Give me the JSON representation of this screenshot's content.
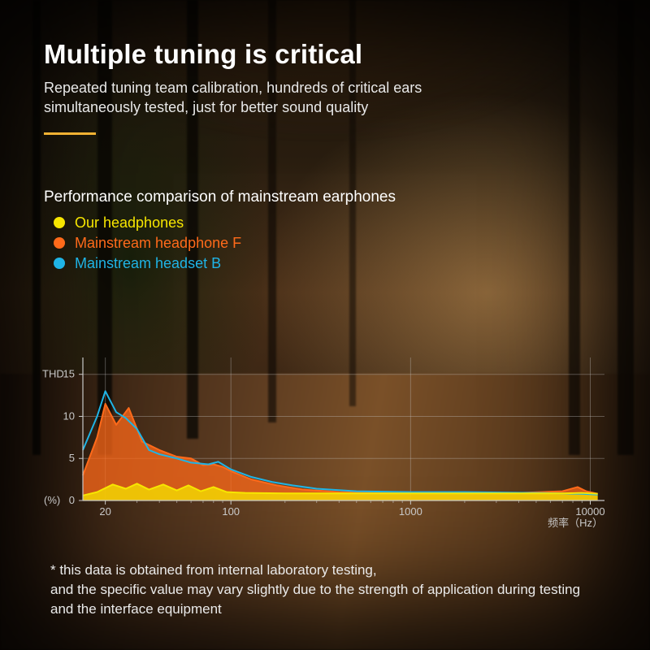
{
  "header": {
    "title": "Multiple tuning is critical",
    "subtitle": "Repeated tuning team calibration, hundreds of critical ears simultaneously tested, just for better sound quality",
    "rule_color": "#f2b233"
  },
  "legend": {
    "section_title": "Performance comparison of mainstream earphones",
    "items": [
      {
        "label": "Our headphones",
        "color": "#f7e600"
      },
      {
        "label": "Mainstream headphone F",
        "color": "#ff6a1a"
      },
      {
        "label": "Mainstream headset B",
        "color": "#1fb4e6"
      }
    ]
  },
  "chart": {
    "type": "line-area",
    "y_axis_title": "THD",
    "y_unit_label": "(%)",
    "x_unit_label": "频率（Hz）",
    "xscale": "log",
    "xlim": [
      15,
      12000
    ],
    "ylim": [
      0,
      17
    ],
    "y_ticks": [
      0,
      5,
      10,
      15
    ],
    "x_ticks": [
      20,
      100,
      1000,
      10000
    ],
    "axis_color": "#c8c8c8",
    "grid_color": "rgba(200,200,200,0.35)",
    "tick_fontsize": 13,
    "label_fontsize": 13,
    "line_width": 2,
    "area_opacity": 0.75,
    "background": "transparent",
    "x_minor_ticks": [
      30,
      40,
      50,
      60,
      70,
      80,
      90,
      200,
      300,
      400,
      500,
      600,
      700,
      800,
      900,
      2000,
      3000,
      4000,
      5000,
      6000,
      7000,
      8000,
      9000
    ],
    "series": [
      {
        "name": "Mainstream headphone F",
        "color": "#ff6a1a",
        "fill": true,
        "points": [
          [
            15,
            3.0
          ],
          [
            18,
            7.5
          ],
          [
            20,
            11.5
          ],
          [
            23,
            9.0
          ],
          [
            27,
            11.0
          ],
          [
            32,
            7.0
          ],
          [
            40,
            6.0
          ],
          [
            50,
            5.2
          ],
          [
            60,
            5.0
          ],
          [
            70,
            4.2
          ],
          [
            80,
            4.3
          ],
          [
            90,
            4.0
          ],
          [
            100,
            3.5
          ],
          [
            130,
            2.5
          ],
          [
            180,
            1.8
          ],
          [
            250,
            1.3
          ],
          [
            400,
            1.0
          ],
          [
            700,
            0.9
          ],
          [
            1000,
            0.9
          ],
          [
            2000,
            0.9
          ],
          [
            4000,
            0.9
          ],
          [
            7000,
            1.1
          ],
          [
            8500,
            1.6
          ],
          [
            9500,
            1.1
          ],
          [
            11000,
            0.8
          ]
        ]
      },
      {
        "name": "Mainstream headset B",
        "color": "#1fb4e6",
        "fill": false,
        "points": [
          [
            15,
            6.0
          ],
          [
            18,
            10.0
          ],
          [
            20,
            13.0
          ],
          [
            23,
            10.5
          ],
          [
            26,
            9.8
          ],
          [
            30,
            8.5
          ],
          [
            35,
            6.0
          ],
          [
            40,
            5.5
          ],
          [
            50,
            5.0
          ],
          [
            60,
            4.5
          ],
          [
            75,
            4.3
          ],
          [
            85,
            4.6
          ],
          [
            100,
            3.7
          ],
          [
            130,
            2.8
          ],
          [
            170,
            2.2
          ],
          [
            220,
            1.8
          ],
          [
            300,
            1.4
          ],
          [
            500,
            1.1
          ],
          [
            1000,
            1.0
          ],
          [
            2000,
            1.0
          ],
          [
            5000,
            0.9
          ],
          [
            9000,
            0.8
          ],
          [
            11000,
            0.7
          ]
        ]
      },
      {
        "name": "Our headphones",
        "color": "#f7e600",
        "fill": true,
        "points": [
          [
            15,
            0.6
          ],
          [
            18,
            1.0
          ],
          [
            22,
            1.9
          ],
          [
            26,
            1.4
          ],
          [
            30,
            2.0
          ],
          [
            35,
            1.3
          ],
          [
            42,
            1.9
          ],
          [
            50,
            1.2
          ],
          [
            58,
            1.8
          ],
          [
            68,
            1.1
          ],
          [
            80,
            1.6
          ],
          [
            95,
            1.0
          ],
          [
            120,
            0.9
          ],
          [
            200,
            0.85
          ],
          [
            400,
            0.85
          ],
          [
            1000,
            0.85
          ],
          [
            3000,
            0.85
          ],
          [
            7000,
            0.85
          ],
          [
            9000,
            0.9
          ],
          [
            11000,
            0.8
          ]
        ]
      }
    ]
  },
  "disclaimer": {
    "text": "* this data is obtained from internal laboratory testing,\nand the specific value may vary slightly due to the strength of application during testing and the interface equipment"
  }
}
